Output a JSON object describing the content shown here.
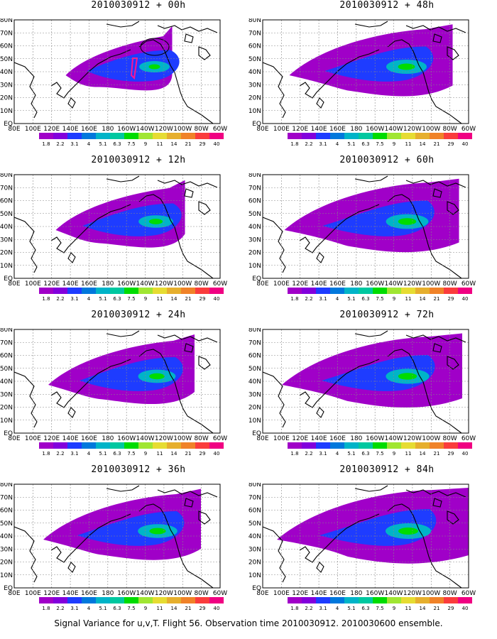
{
  "panels": [
    {
      "title": "2010030912 + 00h",
      "intensity": 0.25
    },
    {
      "title": "2010030912 + 12h",
      "intensity": 0.45
    },
    {
      "title": "2010030912 + 24h",
      "intensity": 0.6
    },
    {
      "title": "2010030912 + 36h",
      "intensity": 0.7
    },
    {
      "title": "2010030912 + 48h",
      "intensity": 0.75
    },
    {
      "title": "2010030912 + 60h",
      "intensity": 0.85
    },
    {
      "title": "2010030912 + 72h",
      "intensity": 0.9
    },
    {
      "title": "2010030912 + 84h",
      "intensity": 1.0
    }
  ],
  "lon_labels": [
    "80E",
    "100E",
    "120E",
    "140E",
    "160E",
    "180",
    "160W",
    "140W",
    "120W",
    "100W",
    "80W",
    "60W"
  ],
  "lat_labels": [
    "80N",
    "70N",
    "60N",
    "50N",
    "40N",
    "30N",
    "20N",
    "10N",
    "EQ"
  ],
  "colorbar": {
    "values": [
      "1.8",
      "2.2",
      "3.1",
      "4",
      "5.1",
      "6.3",
      "7.5",
      "9",
      "11",
      "14",
      "21",
      "29",
      "40"
    ],
    "colors": [
      "#a000c8",
      "#8200dc",
      "#1e3cff",
      "#0078dc",
      "#00b4c8",
      "#00c8a0",
      "#00dc00",
      "#a0e632",
      "#e6dc32",
      "#e6af2d",
      "#f08228",
      "#fa3c3c",
      "#f00082"
    ]
  },
  "footer": "Signal Variance for u,v,T. Flight 56. Observation time 2010030912. 2010030600 ensemble."
}
